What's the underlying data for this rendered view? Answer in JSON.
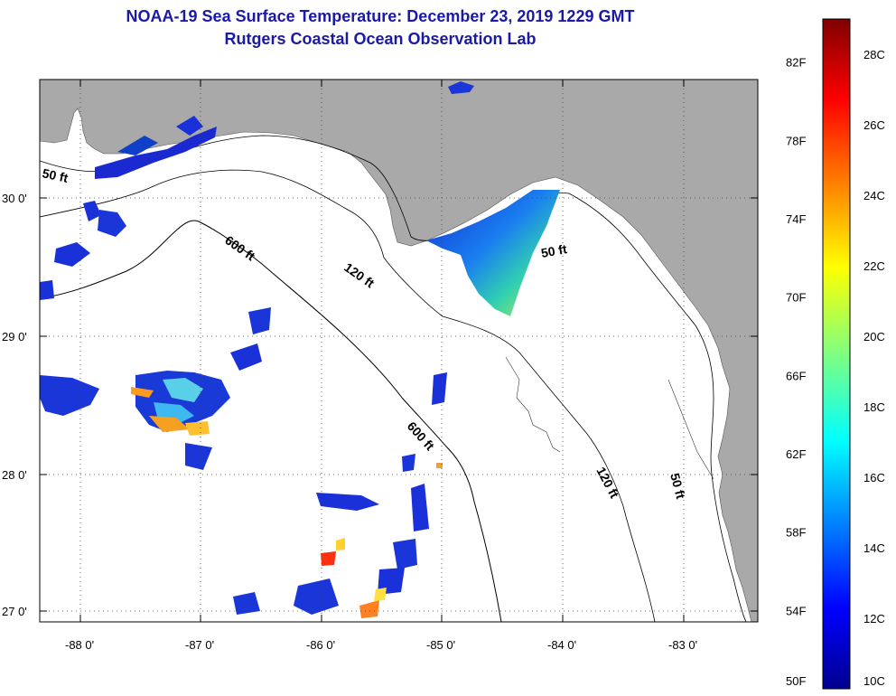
{
  "title_line1": "NOAA-19 Sea Surface Temperature:  December 23, 2019 1229 GMT",
  "title_line2": "Rutgers Coastal Ocean Observation Lab",
  "lat_labels": [
    "30 0'",
    "29 0'",
    "28 0'",
    "27 0'"
  ],
  "lon_labels": [
    "-88 0'",
    "-87 0'",
    "-86 0'",
    "-85 0'",
    "-84 0'",
    "-83 0'"
  ],
  "contour_labels": {
    "c50_west": "50 ft",
    "c600_north": "600 ft",
    "c120_north": "120 ft",
    "c50_east": "50 ft",
    "c600_south": "600 ft",
    "c120_south": "120 ft",
    "c50_south": "50 ft"
  },
  "colorbar": {
    "f_labels": [
      "82F",
      "78F",
      "74F",
      "70F",
      "66F",
      "62F",
      "58F",
      "54F",
      "50F"
    ],
    "c_labels": [
      "28C",
      "26C",
      "24C",
      "22C",
      "20C",
      "18C",
      "16C",
      "14C",
      "12C",
      "10C"
    ],
    "range_c": [
      10,
      29
    ]
  },
  "colors": {
    "land": "#a9a9a9",
    "ocean": "#ffffff",
    "title": "#1a1aa6"
  }
}
